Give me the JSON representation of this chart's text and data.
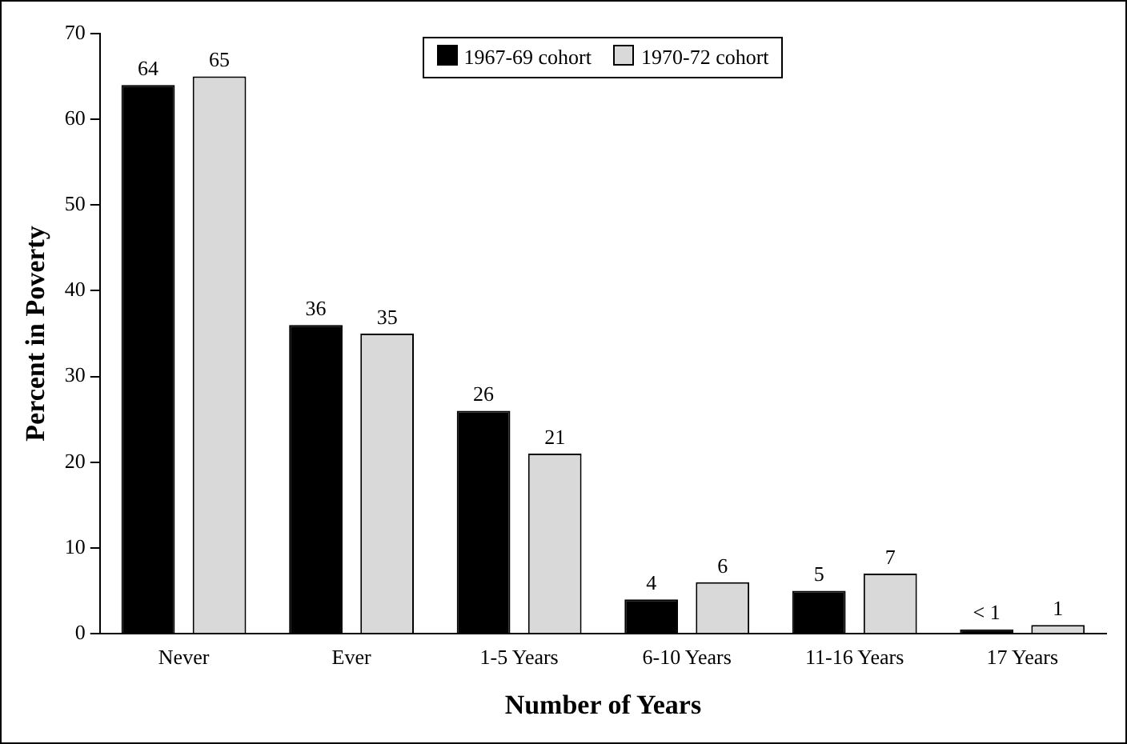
{
  "chart_data": {
    "type": "bar",
    "xlabel": "Number of Years",
    "ylabel": "Percent in Poverty",
    "categories": [
      "Never",
      "Ever",
      "1-5 Years",
      "6-10 Years",
      "11-16 Years",
      "17 Years"
    ],
    "series": [
      {
        "name": "1967-69 cohort",
        "color": "#000000",
        "values": [
          64,
          36,
          26,
          4,
          5,
          0.5
        ],
        "value_labels": [
          "64",
          "36",
          "26",
          "4",
          "5",
          "< 1"
        ]
      },
      {
        "name": "1970-72 cohort",
        "color": "#d9d9d9",
        "values": [
          65,
          35,
          21,
          6,
          7,
          1
        ],
        "value_labels": [
          "65",
          "35",
          "21",
          "6",
          "7",
          "1"
        ]
      }
    ],
    "ylim": [
      0,
      70
    ],
    "yticks": [
      0,
      10,
      20,
      30,
      40,
      50,
      60,
      70
    ],
    "grid": false,
    "legend": "top"
  }
}
